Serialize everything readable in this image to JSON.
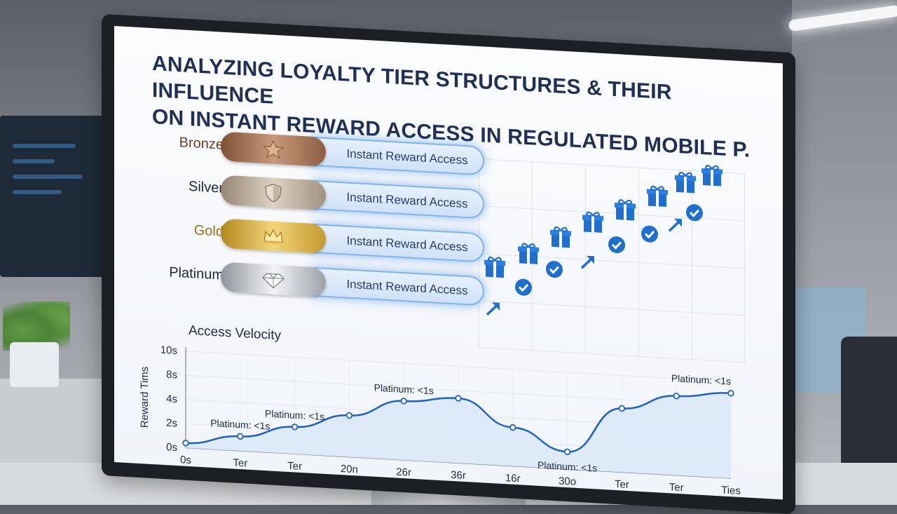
{
  "screen": {
    "title_line1": "ANALYZING LOYALTY TIER STRUCTURES & THEIR INFLUENCE",
    "title_line2": "ON INSTANT REWARD ACCESS IN REGULATED MOBILE P.",
    "tiers": [
      {
        "name": "Bronze",
        "label": "Instant Reward Access",
        "icon": "star-icon",
        "color": "#9b6a4a",
        "label_color": "#6b3f22"
      },
      {
        "name": "Silver",
        "label": "Instant Reward Access",
        "icon": "shield-icon",
        "color": "#b9aa98",
        "label_color": "#1e2533"
      },
      {
        "name": "Gold",
        "label": "Instant Reward Access",
        "icon": "crown-icon",
        "color": "#d2a93a",
        "label_color": "#9a7014"
      },
      {
        "name": "Platinum",
        "label": "Instant Reward Access",
        "icon": "diamond-icon",
        "color": "#b8bcc2",
        "label_color": "#1e2533"
      }
    ],
    "reward_icons": [
      "gift-icon",
      "check-icon",
      "arrow-icon"
    ],
    "accent_color": "#1f6fd1"
  },
  "chart_data": {
    "type": "line",
    "title": "Access Velocity",
    "ylabel": "Reward Tims",
    "y_ticks": [
      "10s",
      "8s",
      "4s",
      "2s",
      "0s"
    ],
    "x_ticks": [
      "0s",
      "Ter",
      "Ter",
      "20n",
      "26r",
      "36r",
      "16r",
      "30o",
      "Ter",
      "Ter",
      "Ties"
    ],
    "ylim": [
      0,
      10
    ],
    "series": [
      {
        "x": [
          0,
          1,
          2,
          3,
          4,
          5,
          6,
          7,
          8,
          9,
          10
        ],
        "values": [
          0.5,
          1.5,
          2.8,
          4.3,
          6.1,
          6.7,
          4.0,
          1.8,
          6.6,
          8.2,
          8.8
        ]
      }
    ],
    "annotations": [
      {
        "text": "Platinum: <1s",
        "at_index": 1
      },
      {
        "text": "Platinum: <1s",
        "at_index": 2
      },
      {
        "text": "Platinum: <1s",
        "at_index": 4
      },
      {
        "text": "Platinum: <1s",
        "at_index": 7
      },
      {
        "text": "Platinum: <1s",
        "at_index": 10
      }
    ]
  }
}
